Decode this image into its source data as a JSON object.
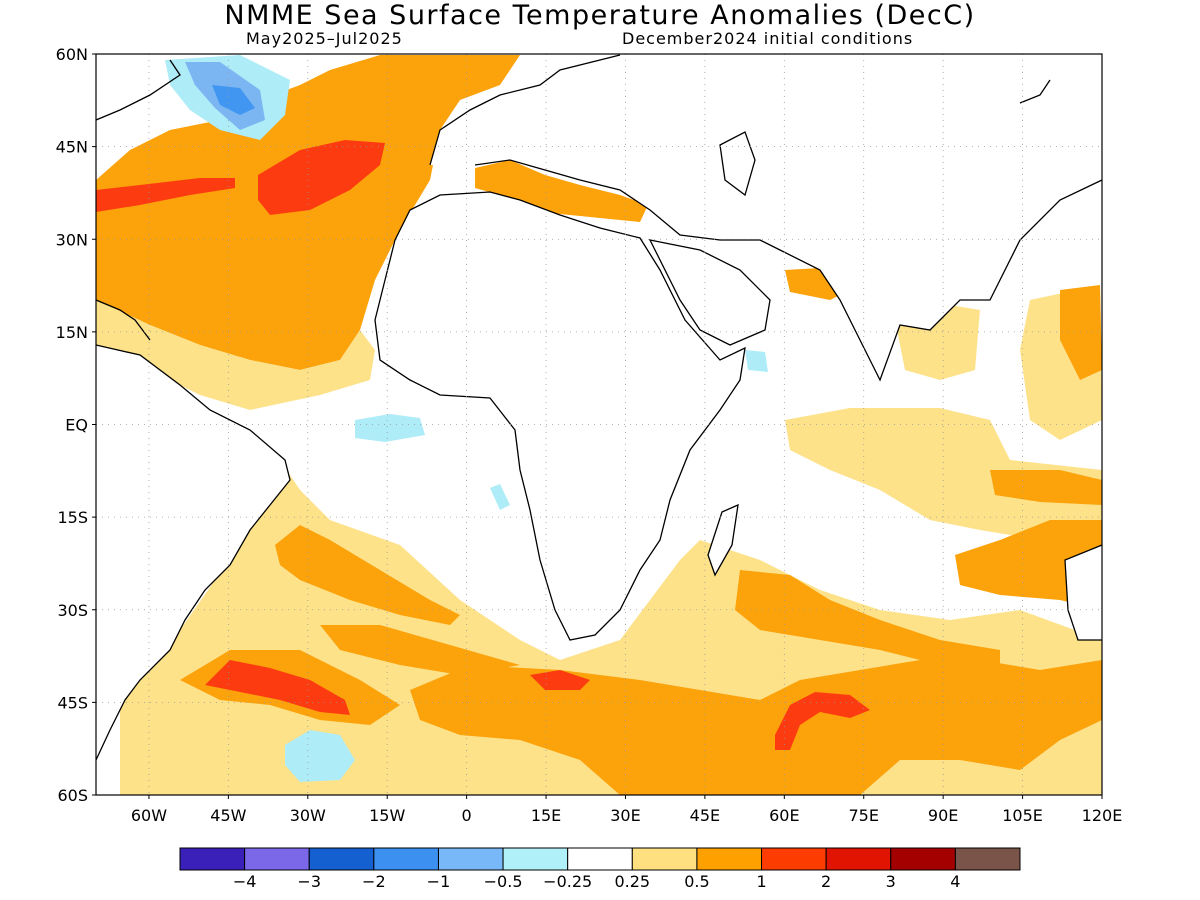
{
  "header": {
    "title": "NMME Sea Surface Temperature Anomalies (DecC)",
    "period": "May2025–Jul2025",
    "initial_conditions": "December2024 initial conditions"
  },
  "map": {
    "lon_range": [
      -70,
      120
    ],
    "lat_range": [
      -60,
      60
    ],
    "lat_ticks": [
      {
        "value": 60,
        "label": "60N"
      },
      {
        "value": 45,
        "label": "45N"
      },
      {
        "value": 30,
        "label": "30N"
      },
      {
        "value": 15,
        "label": "15N"
      },
      {
        "value": 0,
        "label": "EQ"
      },
      {
        "value": -15,
        "label": "15S"
      },
      {
        "value": -30,
        "label": "30S"
      },
      {
        "value": -45,
        "label": "45S"
      },
      {
        "value": -60,
        "label": "60S"
      }
    ],
    "lon_ticks": [
      {
        "value": -60,
        "label": "60W"
      },
      {
        "value": -45,
        "label": "45W"
      },
      {
        "value": -30,
        "label": "30W"
      },
      {
        "value": -15,
        "label": "15W"
      },
      {
        "value": 0,
        "label": "0"
      },
      {
        "value": 15,
        "label": "15E"
      },
      {
        "value": 30,
        "label": "30E"
      },
      {
        "value": 45,
        "label": "45E"
      },
      {
        "value": 60,
        "label": "60E"
      },
      {
        "value": 75,
        "label": "75E"
      },
      {
        "value": 90,
        "label": "90E"
      },
      {
        "value": 105,
        "label": "105E"
      },
      {
        "value": 120,
        "label": "120E"
      }
    ],
    "colors": {
      "warm_0_25": "#fde28a",
      "warm_0_5": "#fca20b",
      "warm_1": "#fc3c10",
      "cool_0_25": "#aeecf7",
      "cool_0_5": "#7cb6f2",
      "cool_1": "#4096f0",
      "coastline": "#000000"
    }
  },
  "legend": {
    "swatches": [
      "#3a20b8",
      "#7a68e8",
      "#1460d0",
      "#3c90f0",
      "#78b8f8",
      "#b0f0f8",
      "#ffffff",
      "#fee080",
      "#fda000",
      "#fc3c00",
      "#e01400",
      "#a40000",
      "#7a5448"
    ],
    "labels": [
      "−4",
      "−3",
      "−2",
      "−1",
      "−0.5",
      "−0.25",
      "0.25",
      "0.5",
      "1",
      "2",
      "3",
      "4"
    ]
  }
}
